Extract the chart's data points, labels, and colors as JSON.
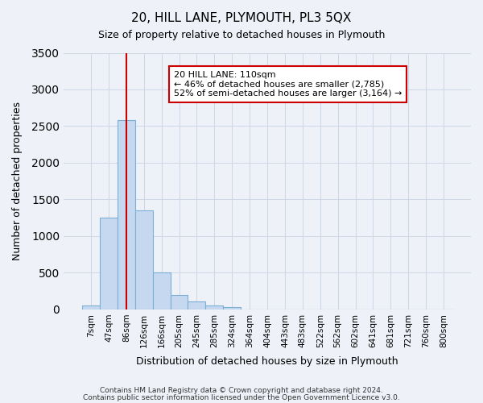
{
  "title": "20, HILL LANE, PLYMOUTH, PL3 5QX",
  "subtitle": "Size of property relative to detached houses in Plymouth",
  "xlabel": "Distribution of detached houses by size in Plymouth",
  "ylabel": "Number of detached properties",
  "bar_values": [
    50,
    1250,
    2580,
    1350,
    500,
    200,
    110,
    50,
    30,
    0,
    0,
    0,
    0,
    0,
    0,
    0,
    0,
    0,
    0,
    0,
    0
  ],
  "bar_labels": [
    "7sqm",
    "47sqm",
    "86sqm",
    "126sqm",
    "166sqm",
    "205sqm",
    "245sqm",
    "285sqm",
    "324sqm",
    "364sqm",
    "404sqm",
    "443sqm",
    "483sqm",
    "522sqm",
    "562sqm",
    "602sqm",
    "641sqm",
    "681sqm",
    "721sqm",
    "760sqm",
    "800sqm"
  ],
  "bar_color": "#c5d8f0",
  "bar_edge_color": "#7bafd4",
  "ylim": [
    0,
    3500
  ],
  "yticks": [
    0,
    500,
    1000,
    1500,
    2000,
    2500,
    3000,
    3500
  ],
  "property_bar_index": 2,
  "annotation_title": "20 HILL LANE: 110sqm",
  "annotation_line1": "← 46% of detached houses are smaller (2,785)",
  "annotation_line2": "52% of semi-detached houses are larger (3,164) →",
  "annotation_box_color": "#ffffff",
  "annotation_box_edge_color": "#cc0000",
  "vline_color": "#cc0000",
  "grid_color": "#d0d8e8",
  "background_color": "#eef2f8",
  "footer_line1": "Contains HM Land Registry data © Crown copyright and database right 2024.",
  "footer_line2": "Contains public sector information licensed under the Open Government Licence v3.0."
}
